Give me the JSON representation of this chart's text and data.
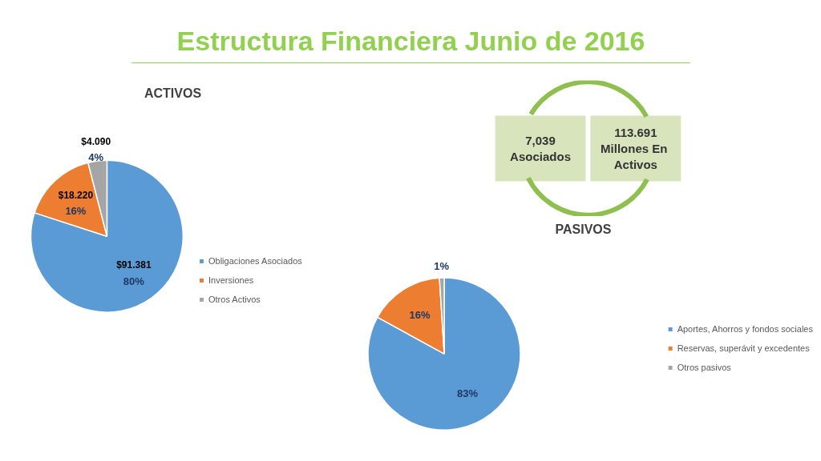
{
  "chart_data": [
    {
      "type": "other",
      "title": "Estructura Financiera Junio de 2016",
      "annotations": [
        "7,039\nAsociados",
        "113.691\nMillones  En\nActivos"
      ]
    },
    {
      "type": "pie",
      "title": "ACTIVOS",
      "categories": [
        "Obligaciones Asociados",
        "Inversiones",
        "Otros Activos"
      ],
      "values": [
        80,
        16,
        4
      ],
      "colors": [
        "#5b9bd5",
        "#ed7d31",
        "#a5a5a5"
      ],
      "value_labels": [
        "80%",
        "16%",
        "4%"
      ],
      "annotations": [
        "$91.381",
        "$18.220",
        "$4.090"
      ],
      "legend": "right"
    },
    {
      "type": "pie",
      "title": "PASIVOS",
      "categories": [
        "Aportes, Ahorros y fondos sociales",
        "Reservas, superávit y excedentes",
        "Otros pasivos"
      ],
      "values": [
        83,
        16,
        1
      ],
      "colors": [
        "#5b9bd5",
        "#ed7d31",
        "#a5a5a5"
      ],
      "value_labels": [
        "83%",
        "16%",
        "1%"
      ],
      "legend": "right"
    }
  ]
}
